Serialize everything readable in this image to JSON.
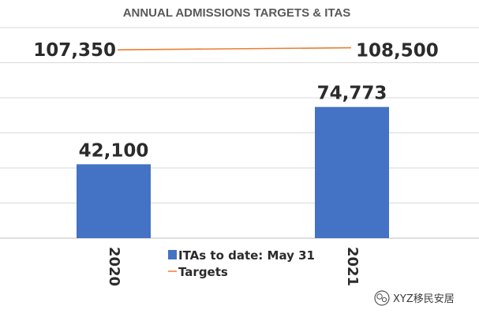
{
  "chart_data": {
    "type": "bar",
    "title": "ANNUAL ADMISSIONS TARGETS & ITAS",
    "categories": [
      "2020",
      "2021"
    ],
    "series": [
      {
        "name": "ITAs to date: May 31",
        "kind": "bar",
        "color": "#4472c4",
        "values": [
          42100,
          74773
        ],
        "labels": [
          "42,100",
          "74,773"
        ]
      },
      {
        "name": "Targets",
        "kind": "line",
        "color": "#ed7d31",
        "values": [
          107350,
          108500
        ],
        "labels": [
          "107,350",
          "108,500"
        ]
      }
    ],
    "ylim": [
      0,
      120000
    ],
    "grid": true,
    "legend": "bottom-center",
    "xlabel": "",
    "ylabel": ""
  },
  "watermark": {
    "text": "XYZ移民安居",
    "icon": "wechat-icon"
  }
}
